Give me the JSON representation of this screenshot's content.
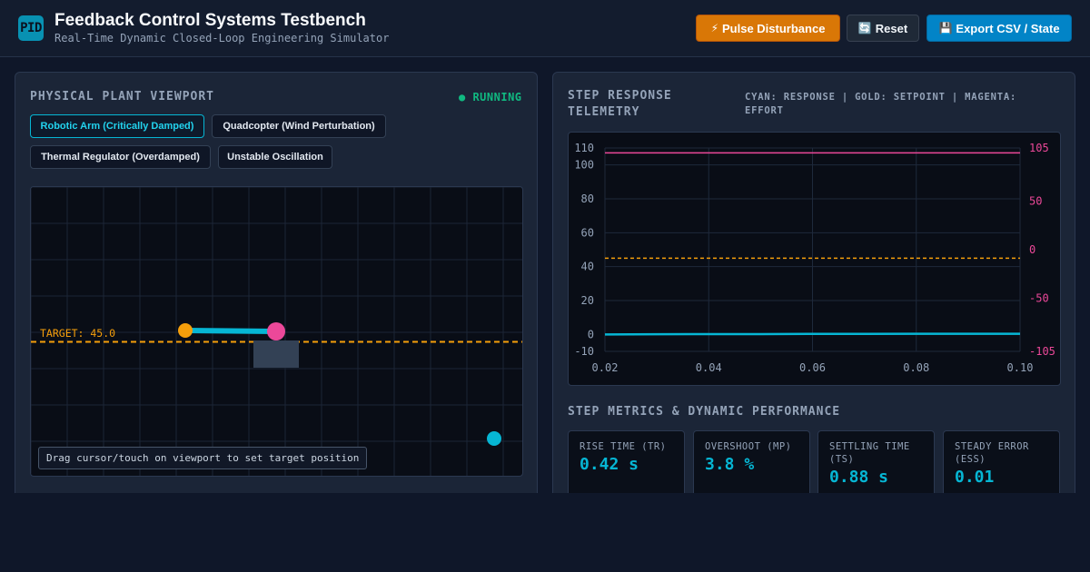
{
  "header": {
    "logo_text": "PID",
    "title": "Feedback Control Systems Testbench",
    "subtitle": "Real-Time Dynamic Closed-Loop Engineering Simulator",
    "buttons": {
      "pulse": {
        "icon": "⚡",
        "label": "Pulse Disturbance",
        "color": "#d97706"
      },
      "reset": {
        "icon": "🔄",
        "label": "Reset"
      },
      "export": {
        "icon": "💾",
        "label": "Export CSV / State",
        "color": "#0284c7"
      }
    }
  },
  "plant": {
    "title": "PHYSICAL PLANT VIEWPORT",
    "status": "● RUNNING",
    "status_color": "#10b981",
    "modes": [
      {
        "label": "Robotic Arm (Critically Damped)",
        "active": true
      },
      {
        "label": "Quadcopter (Wind Perturbation)",
        "active": false
      },
      {
        "label": "Thermal Regulator (Overdamped)",
        "active": false
      },
      {
        "label": "Unstable Oscillation",
        "active": false
      }
    ],
    "target_label": "TARGET: 45.0",
    "hint": "Drag cursor/touch on viewport to set target position"
  },
  "telemetry": {
    "title_line1": "STEP RESPONSE",
    "title_line2": "TELEMETRY",
    "legend": "CYAN: RESPONSE | GOLD: SETPOINT | MAGENTA: EFFORT"
  },
  "chart_data": {
    "type": "line",
    "title": "",
    "xlabel": "",
    "ylabel": "",
    "x_ticks": [
      "0.02",
      "0.04",
      "0.06",
      "0.08",
      "0.10"
    ],
    "xlim": [
      0.02,
      0.1
    ],
    "y_left_ticks": [
      "110",
      "100",
      "80",
      "60",
      "40",
      "20",
      "0",
      "-10"
    ],
    "ylim": [
      -10,
      110
    ],
    "y_right_ticks": [
      "105",
      "50",
      "0",
      "-50",
      "-105"
    ],
    "y2lim": [
      -105,
      105
    ],
    "grid": true,
    "series": [
      {
        "color": "#06b6d4",
        "axis": "left",
        "style": "solid",
        "x": [
          0.02,
          0.03,
          0.04,
          0.05,
          0.06,
          0.07,
          0.08,
          0.09,
          0.1
        ],
        "y": [
          0.0,
          0.1,
          0.2,
          0.2,
          0.3,
          0.3,
          0.4,
          0.4,
          0.4
        ]
      },
      {
        "color": "#f59e0b",
        "axis": "left",
        "style": "dashed",
        "x": [
          0.02,
          0.1
        ],
        "y": [
          45,
          45
        ]
      },
      {
        "color": "#ec4899",
        "axis": "right",
        "style": "solid",
        "x": [
          0.02,
          0.1
        ],
        "y": [
          100,
          100
        ]
      }
    ]
  },
  "metrics": {
    "title": "STEP METRICS & DYNAMIC PERFORMANCE",
    "items": [
      {
        "label": "RISE TIME (TR)",
        "value": "0.42 s"
      },
      {
        "label": "OVERSHOOT (MP)",
        "value": "3.8 %"
      },
      {
        "label": "SETTLING TIME (TS)",
        "value": "0.88 s"
      },
      {
        "label": "STEADY ERROR (ESS)",
        "value": "0.01"
      }
    ]
  }
}
